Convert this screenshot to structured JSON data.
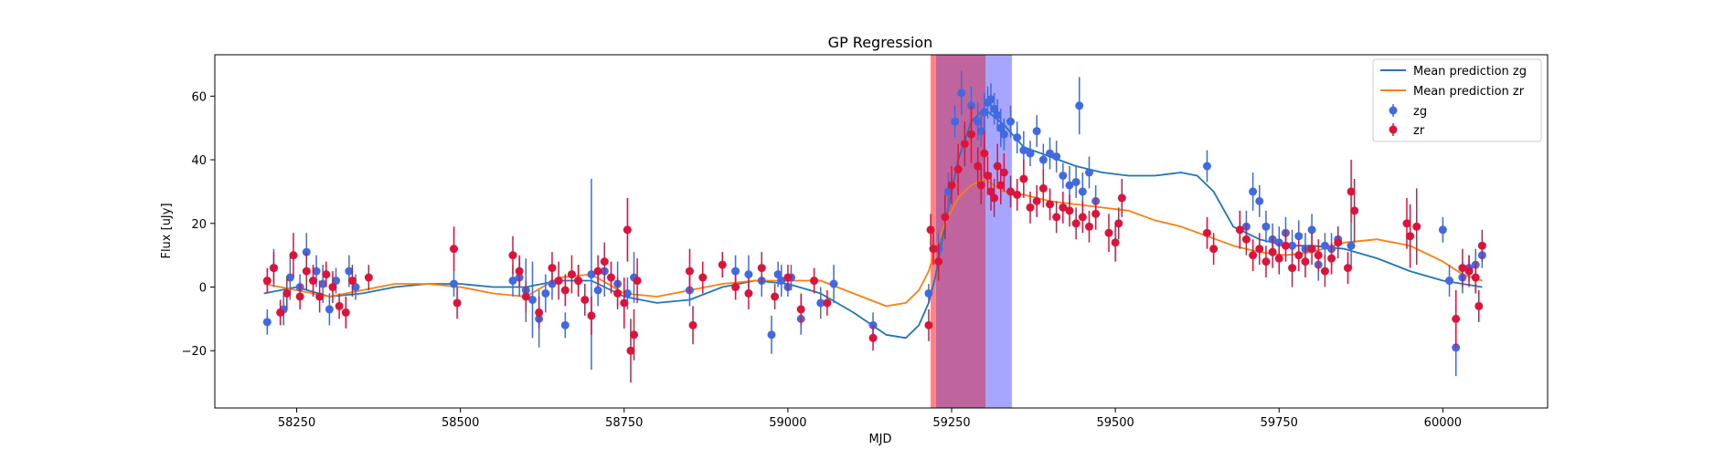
{
  "chart_data": {
    "type": "scatter",
    "title": "GP Regression",
    "xlabel": "MJD",
    "ylabel": "Flux [uJy]",
    "xlim": [
      58125,
      60160
    ],
    "ylim": [
      -38,
      73
    ],
    "xticks": [
      58250,
      58500,
      58750,
      59000,
      59250,
      59500,
      59750,
      60000
    ],
    "yticks": [
      -20,
      0,
      20,
      40,
      60
    ],
    "legend_position": "upper right",
    "legend": {
      "mean_zg": "Mean prediction zg",
      "mean_zr": "Mean prediction zr",
      "zg": "zg",
      "zr": "zr"
    },
    "colors": {
      "zg_line": "#1f77b4",
      "zr_line": "#ff7f0e",
      "zg_points": "#4169e1",
      "zr_points": "#dc143c",
      "span_blue": "#8080ff",
      "span_red": "#ff6464",
      "span_overlap": "#c0649e"
    },
    "shaded_spans": [
      {
        "name": "zg",
        "x0": 59226,
        "x1": 59342
      },
      {
        "name": "zr",
        "x0": 59218,
        "x1": 59302
      }
    ],
    "mean_prediction_zg": {
      "x": [
        58200,
        58250,
        58300,
        58350,
        58400,
        58450,
        58500,
        58550,
        58600,
        58650,
        58700,
        58750,
        58800,
        58850,
        58900,
        58950,
        59000,
        59050,
        59100,
        59150,
        59180,
        59200,
        59215,
        59225,
        59240,
        59260,
        59280,
        59300,
        59330,
        59360,
        59400,
        59440,
        59480,
        59520,
        59560,
        59600,
        59625,
        59650,
        59680,
        59720,
        59760,
        59800,
        59850,
        59900,
        59950,
        60000,
        60030,
        60060
      ],
      "y": [
        -2,
        0,
        -3,
        -2,
        0,
        1,
        1,
        0,
        0,
        2,
        2,
        -3,
        -5,
        -4,
        0,
        2,
        1,
        -2,
        -8,
        -15,
        -16,
        -12,
        -5,
        3,
        20,
        40,
        52,
        56,
        51,
        44,
        41,
        38,
        36,
        35,
        35,
        36,
        35,
        30,
        19,
        15,
        13,
        13,
        12,
        9,
        5,
        2,
        1,
        0
      ]
    },
    "mean_prediction_zr": {
      "x": [
        58200,
        58250,
        58300,
        58350,
        58400,
        58450,
        58500,
        58550,
        58600,
        58650,
        58700,
        58750,
        58800,
        58850,
        58900,
        58950,
        59000,
        59050,
        59100,
        59150,
        59180,
        59200,
        59215,
        59225,
        59240,
        59260,
        59280,
        59300,
        59330,
        59360,
        59400,
        59440,
        59480,
        59520,
        59560,
        59600,
        59640,
        59680,
        59720,
        59760,
        59800,
        59850,
        59900,
        59950,
        60000,
        60030,
        60060
      ],
      "y": [
        1,
        -1,
        -3,
        -1,
        1,
        1,
        0,
        -2,
        -3,
        3,
        4,
        -2,
        -3,
        -1,
        1,
        2,
        2,
        2,
        -2,
        -6,
        -5,
        -1,
        5,
        12,
        20,
        28,
        32,
        34,
        30,
        29,
        27,
        26,
        25,
        24,
        21,
        19,
        16,
        13,
        11,
        10,
        11,
        14,
        15,
        13,
        8,
        4,
        2
      ]
    },
    "zg": {
      "x": [
        58205,
        58215,
        58230,
        58240,
        58255,
        58265,
        58280,
        58290,
        58300,
        58310,
        58330,
        58340,
        58490,
        58580,
        58590,
        58600,
        58610,
        58620,
        58630,
        58640,
        58660,
        58680,
        58700,
        58710,
        58720,
        58740,
        58755,
        58765,
        58850,
        58920,
        58940,
        58960,
        58975,
        58985,
        58990,
        59000,
        59005,
        59020,
        59050,
        59070,
        59130,
        59215,
        59230,
        59245,
        59255,
        59265,
        59280,
        59290,
        59295,
        59300,
        59305,
        59310,
        59315,
        59320,
        59325,
        59330,
        59340,
        59350,
        59360,
        59370,
        59380,
        59390,
        59400,
        59410,
        59420,
        59430,
        59440,
        59445,
        59450,
        59460,
        59470,
        59640,
        59700,
        59710,
        59720,
        59730,
        59740,
        59750,
        59760,
        59770,
        59780,
        59790,
        59800,
        59810,
        59820,
        59830,
        59840,
        59860,
        60000,
        60010,
        60020,
        60030,
        60040,
        60050,
        60060
      ],
      "y": [
        -11,
        6,
        -7,
        3,
        0,
        11,
        5,
        1,
        -7,
        2,
        5,
        0,
        1,
        2,
        3,
        -1,
        -4,
        -10,
        -2,
        1,
        -12,
        2,
        4,
        -1,
        5,
        1,
        -2,
        3,
        -1,
        5,
        4,
        2,
        -15,
        4,
        2,
        0,
        3,
        -10,
        -5,
        1,
        -12,
        -2,
        12,
        30,
        52,
        61,
        57,
        52,
        49,
        55,
        58,
        59,
        56,
        54,
        50,
        48,
        52,
        47,
        43,
        42,
        49,
        40,
        42,
        41,
        35,
        32,
        33,
        57,
        30,
        36,
        27,
        38,
        19,
        30,
        27,
        19,
        15,
        14,
        17,
        13,
        16,
        12,
        18,
        7,
        13,
        12,
        15,
        13,
        18,
        2,
        -19,
        3,
        6,
        7,
        10
      ],
      "err": [
        4,
        6,
        5,
        7,
        4,
        6,
        5,
        6,
        5,
        4,
        5,
        4,
        4,
        5,
        6,
        10,
        12,
        9,
        6,
        5,
        4,
        5,
        30,
        5,
        8,
        7,
        5,
        8,
        5,
        5,
        6,
        5,
        6,
        4,
        5,
        3,
        4,
        5,
        5,
        6,
        4,
        3,
        5,
        6,
        5,
        7,
        6,
        6,
        5,
        6,
        5,
        5,
        5,
        5,
        6,
        5,
        5,
        5,
        6,
        4,
        5,
        5,
        5,
        5,
        4,
        6,
        5,
        9,
        6,
        5,
        5,
        5,
        5,
        6,
        5,
        5,
        5,
        5,
        5,
        5,
        5,
        5,
        5,
        5,
        4,
        5,
        4,
        7,
        4,
        5,
        9,
        5,
        4,
        5,
        4
      ]
    },
    "zr": {
      "x": [
        58205,
        58215,
        58225,
        58235,
        58245,
        58255,
        58265,
        58275,
        58285,
        58295,
        58305,
        58315,
        58325,
        58335,
        58360,
        58490,
        58495,
        58580,
        58590,
        58600,
        58620,
        58640,
        58650,
        58660,
        58670,
        58680,
        58690,
        58700,
        58710,
        58720,
        58730,
        58740,
        58750,
        58755,
        58760,
        58765,
        58770,
        58850,
        58855,
        58870,
        58900,
        58920,
        58940,
        58960,
        58980,
        59000,
        59020,
        59040,
        59060,
        59130,
        59215,
        59218,
        59222,
        59230,
        59240,
        59250,
        59260,
        59270,
        59280,
        59290,
        59295,
        59300,
        59305,
        59310,
        59315,
        59320,
        59325,
        59330,
        59340,
        59350,
        59360,
        59370,
        59380,
        59390,
        59400,
        59410,
        59420,
        59430,
        59440,
        59450,
        59460,
        59470,
        59490,
        59500,
        59505,
        59510,
        59640,
        59650,
        59690,
        59700,
        59710,
        59720,
        59730,
        59740,
        59750,
        59760,
        59770,
        59780,
        59790,
        59800,
        59810,
        59820,
        59830,
        59840,
        59855,
        59860,
        59865,
        59945,
        59950,
        59960,
        60020,
        60030,
        60040,
        60050,
        60055,
        60060
      ],
      "y": [
        2,
        6,
        -8,
        -2,
        10,
        -3,
        5,
        2,
        -3,
        4,
        0,
        -6,
        -8,
        2,
        3,
        12,
        -5,
        10,
        5,
        -3,
        -8,
        6,
        2,
        -1,
        4,
        2,
        -4,
        -9,
        5,
        8,
        3,
        -2,
        -5,
        18,
        -20,
        -15,
        2,
        5,
        -12,
        3,
        7,
        0,
        -2,
        6,
        -3,
        3,
        -7,
        2,
        -5,
        -16,
        -12,
        18,
        12,
        8,
        22,
        32,
        37,
        45,
        48,
        38,
        32,
        42,
        35,
        30,
        28,
        38,
        32,
        36,
        30,
        29,
        34,
        25,
        27,
        31,
        26,
        22,
        25,
        24,
        20,
        22,
        19,
        23,
        17,
        14,
        20,
        28,
        17,
        12,
        18,
        15,
        10,
        12,
        8,
        11,
        9,
        13,
        6,
        10,
        8,
        12,
        10,
        5,
        9,
        14,
        6,
        30,
        24,
        20,
        16,
        19,
        -10,
        6,
        5,
        3,
        -6,
        13
      ],
      "err": [
        4,
        5,
        4,
        5,
        7,
        4,
        6,
        5,
        5,
        4,
        5,
        4,
        5,
        5,
        4,
        7,
        5,
        6,
        5,
        5,
        5,
        5,
        6,
        5,
        6,
        5,
        5,
        6,
        5,
        6,
        5,
        5,
        8,
        10,
        10,
        8,
        7,
        7,
        6,
        5,
        4,
        4,
        5,
        5,
        4,
        4,
        5,
        4,
        4,
        4,
        5,
        5,
        5,
        6,
        7,
        6,
        8,
        7,
        9,
        6,
        6,
        7,
        6,
        6,
        6,
        7,
        6,
        6,
        5,
        5,
        6,
        5,
        5,
        6,
        5,
        5,
        5,
        5,
        5,
        5,
        5,
        5,
        6,
        6,
        5,
        6,
        5,
        5,
        6,
        5,
        5,
        5,
        5,
        5,
        5,
        5,
        6,
        5,
        5,
        5,
        5,
        5,
        5,
        5,
        5,
        10,
        10,
        8,
        10,
        12,
        9,
        6,
        5,
        5,
        5,
        5
      ]
    }
  }
}
